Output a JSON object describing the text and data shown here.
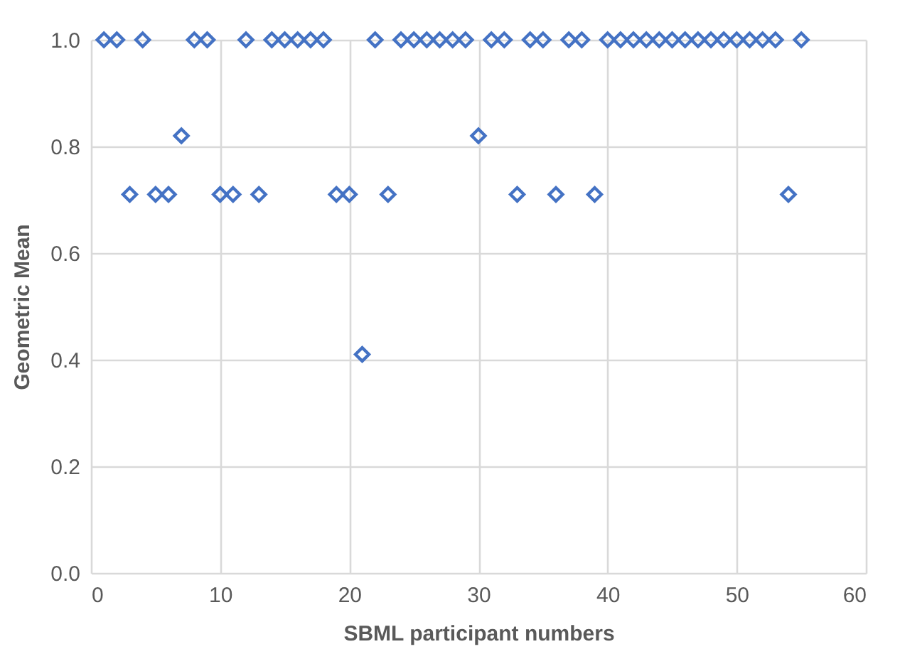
{
  "chart_data": {
    "type": "scatter",
    "xlabel": "SBML participant numbers",
    "ylabel": "Geometric Mean",
    "x": [
      1,
      2,
      3,
      4,
      5,
      6,
      7,
      8,
      9,
      10,
      11,
      12,
      13,
      14,
      15,
      16,
      17,
      18,
      19,
      20,
      21,
      22,
      23,
      24,
      25,
      26,
      27,
      28,
      29,
      30,
      31,
      32,
      33,
      34,
      35,
      36,
      37,
      38,
      39,
      40,
      41,
      42,
      43,
      44,
      45,
      46,
      47,
      48,
      49,
      50,
      51,
      52,
      53,
      54,
      55
    ],
    "series": [
      {
        "color": "#4472c4",
        "values": [
          1,
          1,
          0.71,
          1,
          0.71,
          0.71,
          0.82,
          1,
          1,
          0.71,
          0.71,
          1,
          0.71,
          1,
          1,
          1,
          1,
          1,
          0.71,
          0.71,
          0.41,
          1,
          0.71,
          1,
          1,
          1,
          1,
          1,
          1,
          0.82,
          1,
          1,
          0.71,
          1,
          1,
          0.71,
          1,
          1,
          0.71,
          1,
          1,
          1,
          1,
          1,
          1,
          1,
          1,
          1,
          1,
          1,
          1,
          1,
          1,
          0.71,
          1
        ]
      }
    ],
    "xlim": [
      0,
      60
    ],
    "xticks": [
      0,
      10,
      20,
      30,
      40,
      50,
      60
    ],
    "ylim": [
      0,
      1
    ],
    "yticks": [
      {
        "value": 0,
        "label": "0.0"
      },
      0.2,
      0.4,
      0.6,
      0.8,
      {
        "value": 1,
        "label": "1.0"
      }
    ],
    "grid": true,
    "marker": "diamond"
  }
}
